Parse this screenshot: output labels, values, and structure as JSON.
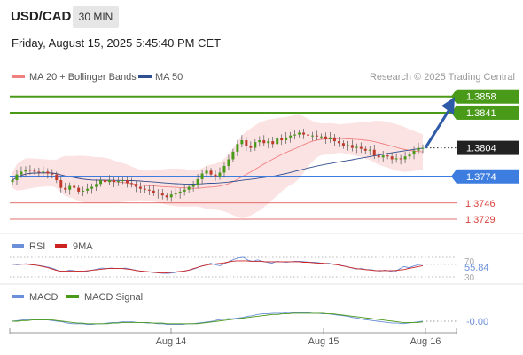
{
  "header": {
    "symbol": "USD/CAD",
    "timeframe": "30 MIN",
    "datetime": "Friday, August 15, 2025 5:45:40 PM CET"
  },
  "legend": {
    "ma20_label": "MA 20 + Bollinger Bands",
    "ma50_label": "MA 50",
    "ma20_color": "#f08080",
    "ma50_color": "#2f4f8f",
    "credit": "Research © 2025 Trading Central"
  },
  "levels": [
    {
      "value": "1.3858",
      "color": "#4a9a1a",
      "style": "box"
    },
    {
      "value": "1.3841",
      "color": "#4a9a1a",
      "style": "box"
    },
    {
      "value": "1.3804",
      "color": "#222222",
      "style": "current"
    },
    {
      "value": "1.3774",
      "color": "#3d7de0",
      "style": "box"
    },
    {
      "value": "1.3746",
      "color": "#d9413c",
      "style": "text"
    },
    {
      "value": "1.3729",
      "color": "#d9413c",
      "style": "text"
    }
  ],
  "rsi_panel": {
    "rsi_label": "RSI",
    "ma_label": "9MA",
    "rsi_color": "#6b8fd8",
    "ma_color": "#cc2222",
    "tick_70": "70",
    "tick_30": "30",
    "value": "55.84"
  },
  "macd_panel": {
    "macd_label": "MACD",
    "signal_label": "MACD Signal",
    "macd_color": "#6b8fd8",
    "signal_color": "#4a9a1a",
    "value": "-0.00"
  },
  "x_axis": {
    "ticks": [
      "Aug 14",
      "Aug 15",
      "Aug 16"
    ]
  },
  "chart_data": {
    "type": "candlestick",
    "ylim": [
      1.3715,
      1.3868
    ],
    "close": [
      1.377,
      1.3776,
      1.3779,
      1.3781,
      1.378,
      1.3779,
      1.3778,
      1.3779,
      1.3777,
      1.3776,
      1.377,
      1.3762,
      1.376,
      1.3764,
      1.3762,
      1.3758,
      1.3759,
      1.3761,
      1.3763,
      1.3766,
      1.377,
      1.3768,
      1.377,
      1.3768,
      1.3769,
      1.377,
      1.3767,
      1.3766,
      1.3763,
      1.3761,
      1.376,
      1.3759,
      1.3757,
      1.3756,
      1.3754,
      1.3752,
      1.3755,
      1.3756,
      1.3758,
      1.376,
      1.3763,
      1.3765,
      1.3771,
      1.3777,
      1.378,
      1.3776,
      1.3774,
      1.3778,
      1.3785,
      1.3792,
      1.38,
      1.3808,
      1.3812,
      1.3806,
      1.3804,
      1.381,
      1.3812,
      1.3809,
      1.3811,
      1.3808,
      1.3814,
      1.3812,
      1.3815,
      1.3817,
      1.3818,
      1.382,
      1.3818,
      1.3817,
      1.3817,
      1.3816,
      1.3816,
      1.3813,
      1.3815,
      1.3811,
      1.3809,
      1.3806,
      1.3807,
      1.3804,
      1.3805,
      1.3803,
      1.3801,
      1.3802,
      1.3796,
      1.3794,
      1.3796,
      1.3795,
      1.3792,
      1.3793,
      1.3792,
      1.3795,
      1.3797,
      1.3801,
      1.3804,
      1.3804
    ],
    "rsi": [
      56,
      55,
      56,
      57,
      55,
      54,
      53,
      51,
      49,
      46,
      41,
      40,
      44,
      43,
      41,
      40,
      42,
      44,
      46,
      48,
      47,
      48,
      47,
      47,
      48,
      46,
      44,
      42,
      41,
      40,
      39,
      38,
      37,
      37,
      38,
      40,
      41,
      43,
      45,
      48,
      52,
      54,
      58,
      55,
      53,
      57,
      62,
      66,
      69,
      70,
      64,
      62,
      65,
      62,
      60,
      58,
      62,
      61,
      60,
      61,
      62,
      62,
      61,
      60,
      60,
      59,
      57,
      58,
      56,
      55,
      53,
      51,
      48,
      46,
      47,
      45,
      45,
      43,
      42,
      44,
      42,
      40,
      46,
      51,
      49,
      52,
      55,
      56
    ],
    "rsi_ma": [
      56,
      56,
      56,
      56,
      55,
      54,
      52,
      50,
      47,
      44,
      42,
      42,
      42,
      42,
      42,
      42,
      43,
      44,
      45,
      46,
      47,
      47,
      47,
      47,
      46,
      45,
      43,
      42,
      41,
      40,
      39,
      38,
      38,
      39,
      40,
      41,
      42,
      44,
      47,
      50,
      53,
      55,
      56,
      57,
      58,
      60,
      62,
      63,
      63,
      63,
      62,
      62,
      62,
      61,
      61,
      61,
      61,
      61,
      61,
      61,
      61,
      60,
      60,
      59,
      58,
      58,
      57,
      56,
      55,
      53,
      51,
      49,
      47,
      46,
      45,
      44,
      43,
      43,
      43,
      43,
      43,
      44,
      45,
      47,
      49,
      51,
      53
    ],
    "macd": [
      0.0,
      0.0001,
      0.0002,
      0.0002,
      0.0002,
      0.0002,
      0.0002,
      0.0002,
      0.0001,
      0.0,
      -0.0001,
      -0.0003,
      -0.0004,
      -0.0004,
      -0.0004,
      -0.0005,
      -0.0005,
      -0.0004,
      -0.0004,
      -0.0003,
      -0.0002,
      -0.0002,
      -0.0001,
      -0.0001,
      -0.0001,
      -0.0002,
      -0.0002,
      -0.0003,
      -0.0003,
      -0.0004,
      -0.0004,
      -0.0005,
      -0.0005,
      -0.0005,
      -0.0005,
      -0.0004,
      -0.0004,
      -0.0003,
      -0.0002,
      -0.0001,
      0.0,
      0.0002,
      0.0003,
      0.0004,
      0.0004,
      0.0005,
      0.0006,
      0.0008,
      0.0009,
      0.0011,
      0.0012,
      0.0012,
      0.0013,
      0.0013,
      0.0013,
      0.0014,
      0.0014,
      0.0014,
      0.0014,
      0.0014,
      0.0013,
      0.0013,
      0.0012,
      0.0012,
      0.0011,
      0.001,
      0.0009,
      0.0008,
      0.0006,
      0.0005,
      0.0003,
      0.0002,
      0.0001,
      0.0,
      -0.0001,
      -0.0002,
      -0.0003,
      -0.0003,
      -0.0004,
      -0.0003,
      -0.0002,
      -0.0001,
      0.0
    ],
    "macd_signal": [
      0.0,
      0.0,
      0.0001,
      0.0001,
      0.0002,
      0.0002,
      0.0002,
      0.0002,
      0.0002,
      0.0001,
      0.0,
      -0.0001,
      -0.0002,
      -0.0003,
      -0.0003,
      -0.0004,
      -0.0004,
      -0.0004,
      -0.0004,
      -0.0004,
      -0.0003,
      -0.0003,
      -0.0002,
      -0.0002,
      -0.0002,
      -0.0002,
      -0.0002,
      -0.0002,
      -0.0003,
      -0.0003,
      -0.0003,
      -0.0004,
      -0.0004,
      -0.0004,
      -0.0004,
      -0.0004,
      -0.0004,
      -0.0004,
      -0.0003,
      -0.0002,
      -0.0001,
      0.0,
      0.0001,
      0.0002,
      0.0003,
      0.0004,
      0.0005,
      0.0006,
      0.0007,
      0.0008,
      0.0009,
      0.001,
      0.0011,
      0.0011,
      0.0012,
      0.0012,
      0.0013,
      0.0013,
      0.0013,
      0.0013,
      0.0013,
      0.0013,
      0.0013,
      0.0012,
      0.0012,
      0.0011,
      0.001,
      0.0009,
      0.0008,
      0.0007,
      0.0006,
      0.0005,
      0.0004,
      0.0003,
      0.0002,
      0.0001,
      0.0,
      -0.0001,
      -0.0002,
      -0.0002,
      -0.0002,
      -0.0002,
      -0.0001
    ]
  }
}
